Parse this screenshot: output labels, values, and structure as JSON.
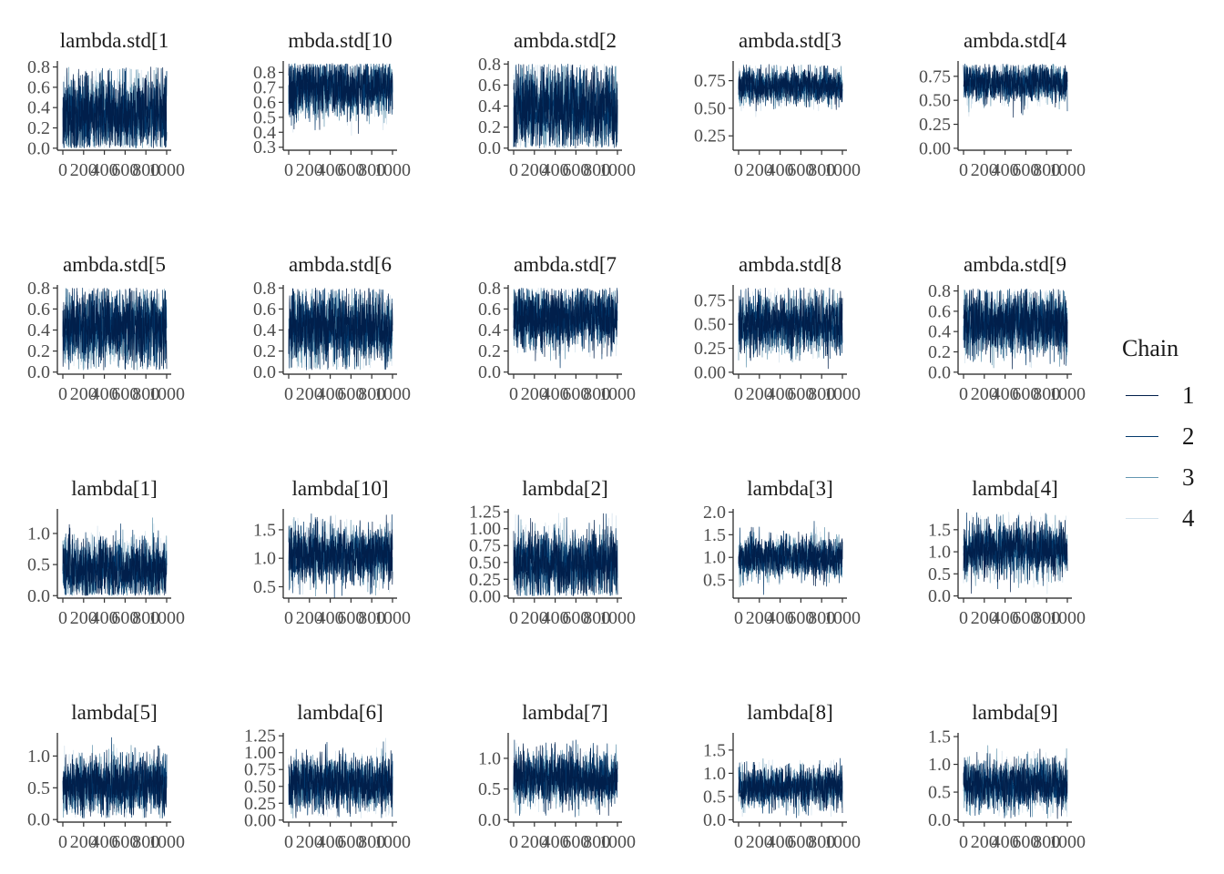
{
  "chart_data": {
    "type": "line",
    "iterations": 1000,
    "x_ticks": [
      0,
      200,
      400,
      600,
      800,
      1000
    ],
    "x_tick_labels": [
      "0",
      "200",
      "400",
      "600",
      "800",
      "1000"
    ],
    "legend": {
      "title": "Chain",
      "entries": [
        {
          "label": "1",
          "color": "#011f4b"
        },
        {
          "label": "2",
          "color": "#03396c"
        },
        {
          "label": "3",
          "color": "#6497b1"
        },
        {
          "label": "4",
          "color": "#d1e1ec"
        }
      ],
      "placement": "right"
    },
    "panels": [
      {
        "title": "lambda.std[1",
        "ylim": [
          -0.02,
          0.85
        ],
        "yticks": [
          0.0,
          0.2,
          0.4,
          0.6,
          0.8
        ],
        "ytick_labels": [
          "0.0",
          "0.2",
          "0.4",
          "0.6",
          "0.8"
        ],
        "center": 0.33,
        "spread": 0.2,
        "lo": 0.0,
        "hi": 0.8
      },
      {
        "title": "mbda.std[10",
        "ylim": [
          0.28,
          0.87
        ],
        "yticks": [
          0.3,
          0.4,
          0.5,
          0.6,
          0.7,
          0.8
        ],
        "ytick_labels": [
          "0.3",
          "0.4",
          "0.5",
          "0.6",
          "0.7",
          "0.8"
        ],
        "center": 0.7,
        "spread": 0.1,
        "lo": 0.3,
        "hi": 0.86
      },
      {
        "title": "ambda.std[2",
        "ylim": [
          -0.02,
          0.82
        ],
        "yticks": [
          0.0,
          0.2,
          0.4,
          0.6,
          0.8
        ],
        "ytick_labels": [
          "0.0",
          "0.2",
          "0.4",
          "0.6",
          "0.8"
        ],
        "center": 0.38,
        "spread": 0.2,
        "lo": 0.0,
        "hi": 0.8
      },
      {
        "title": "ambda.std[3",
        "ylim": [
          0.12,
          0.92
        ],
        "yticks": [
          0.25,
          0.5,
          0.75
        ],
        "ytick_labels": [
          "0.25",
          "0.50",
          "0.75"
        ],
        "center": 0.7,
        "spread": 0.08,
        "lo": 0.15,
        "hi": 0.9
      },
      {
        "title": "ambda.std[4",
        "ylim": [
          -0.02,
          0.9
        ],
        "yticks": [
          0.0,
          0.25,
          0.5,
          0.75
        ],
        "ytick_labels": [
          "0.00",
          "0.25",
          "0.50",
          "0.75"
        ],
        "center": 0.68,
        "spread": 0.1,
        "lo": 0.03,
        "hi": 0.88
      },
      {
        "title": "ambda.std[5",
        "ylim": [
          -0.02,
          0.82
        ],
        "yticks": [
          0.0,
          0.2,
          0.4,
          0.6,
          0.8
        ],
        "ytick_labels": [
          "0.0",
          "0.2",
          "0.4",
          "0.6",
          "0.8"
        ],
        "center": 0.42,
        "spread": 0.18,
        "lo": 0.02,
        "hi": 0.8
      },
      {
        "title": "ambda.std[6",
        "ylim": [
          -0.02,
          0.82
        ],
        "yticks": [
          0.0,
          0.2,
          0.4,
          0.6,
          0.8
        ],
        "ytick_labels": [
          "0.0",
          "0.2",
          "0.4",
          "0.6",
          "0.8"
        ],
        "center": 0.42,
        "spread": 0.18,
        "lo": 0.02,
        "hi": 0.8
      },
      {
        "title": "ambda.std[7",
        "ylim": [
          -0.02,
          0.82
        ],
        "yticks": [
          0.0,
          0.2,
          0.4,
          0.6,
          0.8
        ],
        "ytick_labels": [
          "0.0",
          "0.2",
          "0.4",
          "0.6",
          "0.8"
        ],
        "center": 0.52,
        "spread": 0.15,
        "lo": 0.03,
        "hi": 0.8
      },
      {
        "title": "ambda.std[8",
        "ylim": [
          -0.02,
          0.9
        ],
        "yticks": [
          0.0,
          0.25,
          0.5,
          0.75
        ],
        "ytick_labels": [
          "0.00",
          "0.25",
          "0.50",
          "0.75"
        ],
        "center": 0.5,
        "spread": 0.15,
        "lo": 0.03,
        "hi": 0.88
      },
      {
        "title": "ambda.std[9",
        "ylim": [
          -0.02,
          0.85
        ],
        "yticks": [
          0.0,
          0.2,
          0.4,
          0.6,
          0.8
        ],
        "ytick_labels": [
          "0.0",
          "0.2",
          "0.4",
          "0.6",
          "0.8"
        ],
        "center": 0.48,
        "spread": 0.16,
        "lo": 0.02,
        "hi": 0.82
      },
      {
        "title": "lambda[1]",
        "ylim": [
          -0.04,
          1.38
        ],
        "yticks": [
          0.0,
          0.5,
          1.0
        ],
        "ytick_labels": [
          "0.0",
          "0.5",
          "1.0"
        ],
        "center": 0.42,
        "spread": 0.25,
        "lo": 0.0,
        "hi": 1.3
      },
      {
        "title": "lambda[10]",
        "ylim": [
          0.3,
          1.85
        ],
        "yticks": [
          0.5,
          1.0,
          1.5
        ],
        "ytick_labels": [
          "0.5",
          "1.0",
          "1.5"
        ],
        "center": 1.05,
        "spread": 0.25,
        "lo": 0.3,
        "hi": 1.8
      },
      {
        "title": "lambda[2]",
        "ylim": [
          -0.03,
          1.28
        ],
        "yticks": [
          0.0,
          0.25,
          0.5,
          0.75,
          1.0,
          1.25
        ],
        "ytick_labels": [
          "0.00",
          "0.25",
          "0.50",
          "0.75",
          "1.00",
          "1.25"
        ],
        "center": 0.48,
        "spread": 0.25,
        "lo": 0.0,
        "hi": 1.25
      },
      {
        "title": "lambda[3]",
        "ylim": [
          0.1,
          2.05
        ],
        "yticks": [
          0.5,
          1.0,
          1.5,
          2.0
        ],
        "ytick_labels": [
          "0.5",
          "1.0",
          "1.5",
          "2.0"
        ],
        "center": 1.0,
        "spread": 0.22,
        "lo": 0.15,
        "hi": 2.0
      },
      {
        "title": "lambda[4]",
        "ylim": [
          -0.05,
          1.95
        ],
        "yticks": [
          0.0,
          0.5,
          1.0,
          1.5
        ],
        "ytick_labels": [
          "0.0",
          "0.5",
          "1.0",
          "1.5"
        ],
        "center": 1.05,
        "spread": 0.3,
        "lo": 0.05,
        "hi": 1.9
      },
      {
        "title": "lambda[5]",
        "ylim": [
          -0.04,
          1.35
        ],
        "yticks": [
          0.0,
          0.5,
          1.0
        ],
        "ytick_labels": [
          "0.0",
          "0.5",
          "1.0"
        ],
        "center": 0.55,
        "spread": 0.22,
        "lo": 0.02,
        "hi": 1.3
      },
      {
        "title": "lambda[6]",
        "ylim": [
          -0.03,
          1.28
        ],
        "yticks": [
          0.0,
          0.25,
          0.5,
          0.75,
          1.0,
          1.25
        ],
        "ytick_labels": [
          "0.00",
          "0.25",
          "0.50",
          "0.75",
          "1.00",
          "1.25"
        ],
        "center": 0.55,
        "spread": 0.2,
        "lo": 0.02,
        "hi": 1.22
      },
      {
        "title": "lambda[7]",
        "ylim": [
          -0.04,
          1.4
        ],
        "yticks": [
          0.0,
          0.5,
          1.0
        ],
        "ytick_labels": [
          "0.0",
          "0.5",
          "1.0"
        ],
        "center": 0.68,
        "spread": 0.22,
        "lo": 0.02,
        "hi": 1.3
      },
      {
        "title": "lambda[8]",
        "ylim": [
          -0.05,
          1.85
        ],
        "yticks": [
          0.0,
          0.5,
          1.0,
          1.5
        ],
        "ytick_labels": [
          "0.0",
          "0.5",
          "1.0",
          "1.5"
        ],
        "center": 0.7,
        "spread": 0.22,
        "lo": 0.03,
        "hi": 1.75
      },
      {
        "title": "lambda[9]",
        "ylim": [
          -0.04,
          1.55
        ],
        "yticks": [
          0.0,
          0.5,
          1.0,
          1.5
        ],
        "ytick_labels": [
          "0.0",
          "0.5",
          "1.0",
          "1.5"
        ],
        "center": 0.65,
        "spread": 0.22,
        "lo": 0.02,
        "hi": 1.45
      }
    ]
  }
}
